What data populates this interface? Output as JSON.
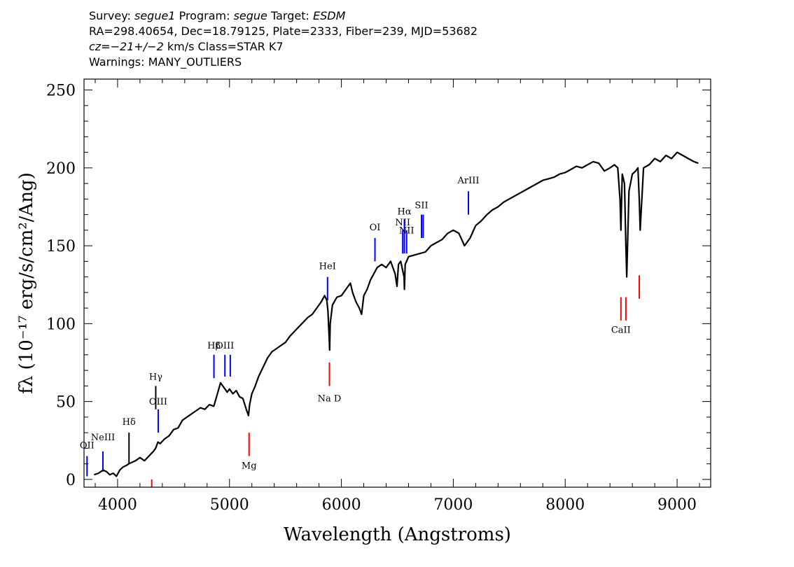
{
  "header": {
    "line1": {
      "survey_label": "Survey:",
      "survey_value": "segue1",
      "program_label": "Program:",
      "program_value": "segue",
      "target_label": "Target:",
      "target_value": "ESDM"
    },
    "line2": "RA=298.40654, Dec=18.79125, Plate=2333, Fiber=239, MJD=53682",
    "line3": {
      "cz_label": "cz=",
      "cz_value": "−21+/−2",
      "cz_rest": " km/s Class=STAR K7"
    },
    "line4": "Warnings: MANY_OUTLIERS"
  },
  "chart_data": {
    "type": "line",
    "title": "",
    "xlabel": "Wavelength (Angstroms)",
    "ylabel": "fλ (10⁻¹⁷ erg/s/cm²/Ang)",
    "xlim": [
      3700,
      9300
    ],
    "ylim": [
      -5,
      257
    ],
    "x_ticks": [
      4000,
      5000,
      6000,
      7000,
      8000,
      9000
    ],
    "y_ticks": [
      0,
      50,
      100,
      150,
      200,
      250
    ],
    "grid": false,
    "series": [
      {
        "color": "#000000",
        "x": [
          3790,
          3830,
          3870,
          3900,
          3930,
          3960,
          3990,
          4020,
          4050,
          4080,
          4100,
          4130,
          4160,
          4200,
          4240,
          4280,
          4320,
          4340,
          4360,
          4380,
          4420,
          4460,
          4500,
          4540,
          4580,
          4620,
          4660,
          4700,
          4740,
          4780,
          4820,
          4860,
          4880,
          4900,
          4920,
          4950,
          4980,
          5000,
          5030,
          5060,
          5090,
          5120,
          5150,
          5170,
          5180,
          5200,
          5230,
          5260,
          5300,
          5340,
          5380,
          5420,
          5460,
          5500,
          5540,
          5580,
          5620,
          5660,
          5700,
          5740,
          5780,
          5820,
          5850,
          5870,
          5880,
          5890,
          5895,
          5900,
          5920,
          5960,
          6000,
          6040,
          6080,
          6100,
          6130,
          6160,
          6180,
          6200,
          6230,
          6260,
          6290,
          6320,
          6360,
          6400,
          6440,
          6480,
          6497,
          6510,
          6530,
          6560,
          6563,
          6570,
          6600,
          6650,
          6700,
          6750,
          6800,
          6850,
          6900,
          6950,
          7000,
          7050,
          7100,
          7150,
          7200,
          7250,
          7300,
          7350,
          7400,
          7450,
          7500,
          7550,
          7600,
          7650,
          7700,
          7750,
          7800,
          7850,
          7900,
          7950,
          8000,
          8050,
          8100,
          8150,
          8200,
          8250,
          8300,
          8350,
          8400,
          8440,
          8470,
          8490,
          8498,
          8510,
          8530,
          8542,
          8550,
          8570,
          8600,
          8630,
          8650,
          8662,
          8670,
          8700,
          8750,
          8800,
          8850,
          8900,
          8950,
          9000,
          9050,
          9100,
          9150,
          9190
        ],
        "y": [
          3,
          4,
          6,
          5,
          3,
          4,
          2,
          6,
          8,
          9,
          10,
          11,
          12,
          14,
          12,
          15,
          18,
          20,
          24,
          23,
          26,
          28,
          32,
          33,
          38,
          40,
          42,
          44,
          46,
          45,
          48,
          47,
          52,
          57,
          62,
          59,
          56,
          58,
          55,
          57,
          53,
          52,
          45,
          41,
          48,
          55,
          60,
          66,
          72,
          78,
          82,
          84,
          86,
          88,
          92,
          95,
          98,
          101,
          104,
          106,
          110,
          114,
          118,
          115,
          108,
          92,
          83,
          100,
          112,
          117,
          118,
          122,
          126,
          120,
          114,
          110,
          106,
          118,
          122,
          128,
          132,
          136,
          138,
          136,
          140,
          132,
          124,
          138,
          140,
          130,
          122,
          138,
          143,
          144,
          145,
          146,
          150,
          152,
          154,
          158,
          160,
          158,
          150,
          155,
          163,
          166,
          170,
          173,
          175,
          178,
          180,
          182,
          184,
          186,
          188,
          190,
          192,
          193,
          194,
          196,
          197,
          199,
          201,
          200,
          202,
          204,
          203,
          198,
          200,
          202,
          200,
          180,
          160,
          196,
          190,
          150,
          130,
          185,
          196,
          198,
          200,
          180,
          160,
          200,
          202,
          206,
          204,
          208,
          206,
          210,
          208,
          206,
          204,
          203
        ]
      }
    ],
    "annotations": [
      {
        "label": "OII",
        "x": 3727,
        "y0": 2,
        "y1": 15,
        "color": "#0000ff",
        "label_y": 20
      },
      {
        "label": "NeIII",
        "x": 3869,
        "y0": 5,
        "y1": 18,
        "color": "#0000ff",
        "label_y": 25
      },
      {
        "label": "Hδ",
        "x": 4102,
        "y0": 10,
        "y1": 30,
        "color": "#000000",
        "label_y": 35
      },
      {
        "label": "Hγ",
        "x": 4341,
        "y0": 45,
        "y1": 60,
        "color": "#000000",
        "label_y": 64
      },
      {
        "label": "OIII",
        "x": 4363,
        "y0": 30,
        "y1": 45,
        "color": "#0000ff",
        "label_y": 48
      },
      {
        "label": "Hβ",
        "x": 4861,
        "y0": 65,
        "y1": 80,
        "color": "#0000ff",
        "label_y": 84
      },
      {
        "label": "OIII",
        "x": 4959,
        "y0": 66,
        "y1": 80,
        "color": "#0000ff",
        "label_y": 84
      },
      {
        "label": "",
        "x": 5007,
        "y0": 66,
        "y1": 80,
        "color": "#0000ff",
        "label_y": 84
      },
      {
        "label": "HeI",
        "x": 5876,
        "y0": 115,
        "y1": 130,
        "color": "#0000ff",
        "label_y": 135
      },
      {
        "label": "OI",
        "x": 6300,
        "y0": 140,
        "y1": 155,
        "color": "#0000ff",
        "label_y": 160
      },
      {
        "label": "NII",
        "x": 6548,
        "y0": 145,
        "y1": 160,
        "color": "#0000ff",
        "label_y": 163
      },
      {
        "label": "Hα",
        "x": 6563,
        "y0": 145,
        "y1": 167,
        "color": "#0000ff",
        "label_y": 170
      },
      {
        "label": "NII",
        "x": 6583,
        "y0": 145,
        "y1": 160,
        "color": "#0000ff",
        "label_y": 158
      },
      {
        "label": "SII",
        "x": 6716,
        "y0": 155,
        "y1": 170,
        "color": "#0000ff",
        "label_y": 174
      },
      {
        "label": "",
        "x": 6731,
        "y0": 155,
        "y1": 170,
        "color": "#0000ff",
        "label_y": 174
      },
      {
        "label": "ArIII",
        "x": 7135,
        "y0": 170,
        "y1": 185,
        "color": "#0000ff",
        "label_y": 190
      },
      {
        "label": "Mg",
        "x": 5175,
        "y0": 30,
        "y1": 15,
        "color": "#ff0000",
        "label_y": 7
      },
      {
        "label": "Na D",
        "x": 5893,
        "y0": 75,
        "y1": 60,
        "color": "#ff0000",
        "label_y": 50
      },
      {
        "label": "CaII",
        "x": 8498,
        "y0": 117,
        "y1": 102,
        "color": "#ff0000",
        "label_y": 94
      },
      {
        "label": "",
        "x": 8542,
        "y0": 117,
        "y1": 102,
        "color": "#ff0000",
        "label_y": 94
      },
      {
        "label": "",
        "x": 8662,
        "y0": 131,
        "y1": 116,
        "color": "#ff0000",
        "label_y": 108
      },
      {
        "label": "",
        "x": 4305,
        "y0": 0,
        "y1": -5,
        "color": "#ff0000",
        "label_y": -5
      }
    ]
  }
}
